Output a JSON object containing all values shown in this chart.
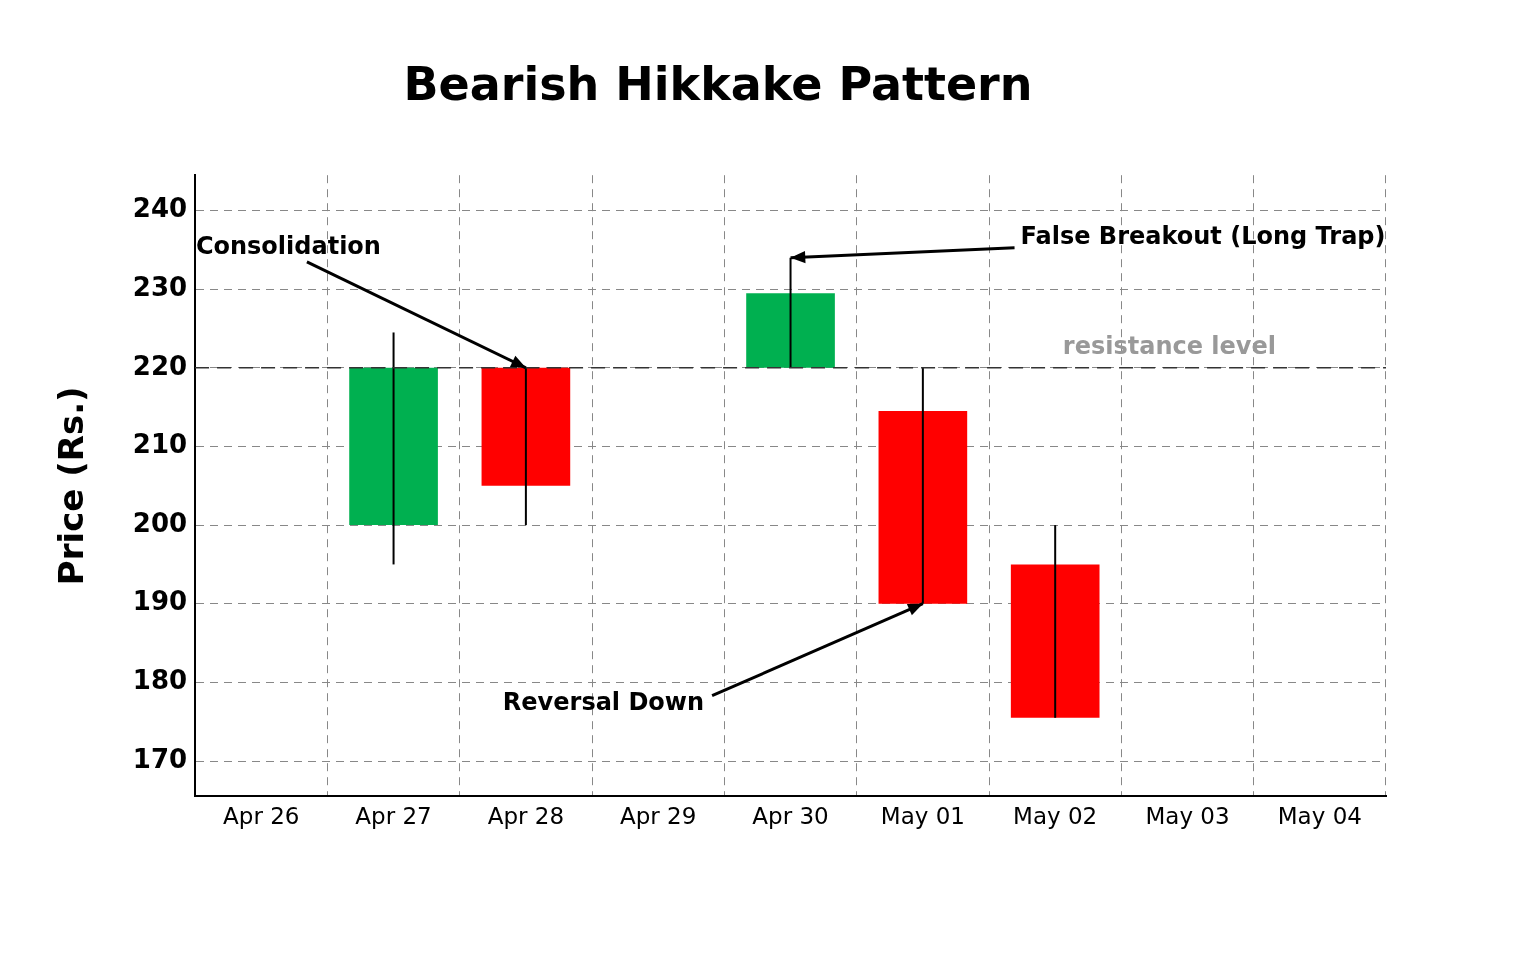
{
  "chart_data": {
    "type": "candlestick",
    "title": "Bearish Hikkake Pattern",
    "ylabel": "Price (Rs.)",
    "categories": [
      "Apr 26",
      "Apr 27",
      "Apr 28",
      "Apr 29",
      "Apr 30",
      "May 01",
      "May 02",
      "May 03",
      "May 04"
    ],
    "ohlc": [
      null,
      [
        200,
        224.5,
        195,
        220
      ],
      [
        220,
        220,
        200,
        205
      ],
      null,
      [
        220,
        234,
        220,
        229.5
      ],
      [
        214.5,
        220,
        190,
        190
      ],
      [
        195,
        200,
        175.5,
        175.5
      ],
      null,
      null
    ],
    "colors": [
      null,
      "#00b050",
      "#ff0000",
      null,
      "#00b050",
      "#ff0000",
      "#ff0000",
      null,
      null
    ],
    "ylim": [
      165.5,
      244.5
    ],
    "yticks": [
      170,
      180,
      190,
      200,
      210,
      220,
      230,
      240
    ],
    "grid": true,
    "legend": false,
    "ref_lines": [
      {
        "axis": "y",
        "value": 220,
        "label": "resistance level",
        "color": "#333333",
        "line_style": "dashed"
      }
    ],
    "annotations": [
      {
        "text": "Consolidation",
        "x": "Apr 28",
        "y": 220
      },
      {
        "text": "False Breakout (Long Trap)",
        "x": "Apr 30",
        "y": 234
      },
      {
        "text": "Reversal Down",
        "x": "May 01",
        "y": 190
      }
    ]
  }
}
